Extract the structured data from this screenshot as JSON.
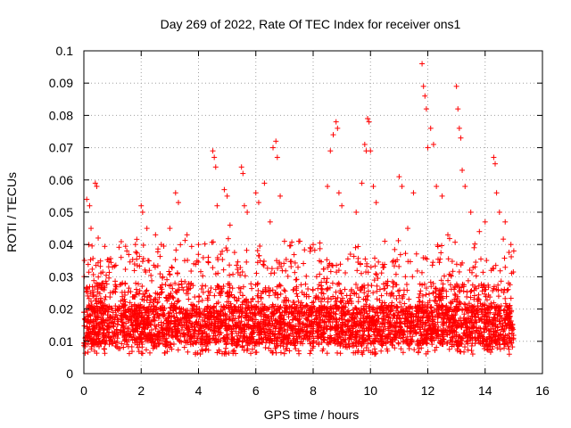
{
  "chart_data": {
    "type": "scatter",
    "title": "Day 269 of 2022, Rate Of TEC Index for receiver ons1",
    "xlabel": "GPS time / hours",
    "ylabel": "ROTI / TECUs",
    "xlim": [
      0,
      16
    ],
    "ylim": [
      0,
      0.1
    ],
    "xticks": [
      "0",
      "2",
      "4",
      "6",
      "8",
      "10",
      "12",
      "14",
      "16"
    ],
    "yticks": [
      "0",
      "0.01",
      "0.02",
      "0.03",
      "0.04",
      "0.05",
      "0.06",
      "0.07",
      "0.08",
      "0.09",
      "0.1"
    ],
    "grid": true,
    "marker": "+",
    "color": "#ff0000",
    "data_extent_hours": [
      0,
      15
    ],
    "series": [
      {
        "name": "ROTI ons1",
        "points": [
          [
            0.1,
            0.054
          ],
          [
            0.2,
            0.052
          ],
          [
            0.25,
            0.045
          ],
          [
            0.4,
            0.059
          ],
          [
            0.45,
            0.058
          ],
          [
            0.5,
            0.042
          ],
          [
            1.0,
            0.033
          ],
          [
            1.3,
            0.036
          ],
          [
            1.5,
            0.038
          ],
          [
            1.8,
            0.04
          ],
          [
            2.0,
            0.052
          ],
          [
            2.05,
            0.05
          ],
          [
            2.2,
            0.045
          ],
          [
            2.5,
            0.043
          ],
          [
            2.7,
            0.04
          ],
          [
            3.0,
            0.045
          ],
          [
            3.2,
            0.056
          ],
          [
            3.3,
            0.053
          ],
          [
            3.6,
            0.043
          ],
          [
            4.0,
            0.04
          ],
          [
            4.5,
            0.069
          ],
          [
            4.55,
            0.067
          ],
          [
            4.6,
            0.064
          ],
          [
            4.65,
            0.052
          ],
          [
            4.9,
            0.057
          ],
          [
            5.0,
            0.055
          ],
          [
            5.1,
            0.046
          ],
          [
            5.5,
            0.064
          ],
          [
            5.55,
            0.062
          ],
          [
            5.6,
            0.052
          ],
          [
            5.7,
            0.05
          ],
          [
            6.0,
            0.056
          ],
          [
            6.1,
            0.053
          ],
          [
            6.3,
            0.059
          ],
          [
            6.5,
            0.047
          ],
          [
            6.6,
            0.07
          ],
          [
            6.7,
            0.072
          ],
          [
            6.75,
            0.067
          ],
          [
            6.85,
            0.055
          ],
          [
            7.0,
            0.041
          ],
          [
            7.5,
            0.041
          ],
          [
            7.9,
            0.039
          ],
          [
            8.0,
            0.04
          ],
          [
            8.5,
            0.058
          ],
          [
            8.6,
            0.069
          ],
          [
            8.7,
            0.074
          ],
          [
            8.8,
            0.078
          ],
          [
            8.85,
            0.076
          ],
          [
            8.9,
            0.056
          ],
          [
            9.0,
            0.052
          ],
          [
            9.3,
            0.037
          ],
          [
            9.5,
            0.05
          ],
          [
            9.7,
            0.059
          ],
          [
            9.8,
            0.071
          ],
          [
            9.85,
            0.069
          ],
          [
            9.9,
            0.079
          ],
          [
            9.95,
            0.078
          ],
          [
            10.0,
            0.069
          ],
          [
            10.1,
            0.058
          ],
          [
            10.2,
            0.053
          ],
          [
            10.5,
            0.041
          ],
          [
            10.8,
            0.035
          ],
          [
            11.0,
            0.061
          ],
          [
            11.1,
            0.058
          ],
          [
            11.3,
            0.045
          ],
          [
            11.5,
            0.056
          ],
          [
            11.8,
            0.096
          ],
          [
            11.85,
            0.089
          ],
          [
            11.9,
            0.086
          ],
          [
            11.95,
            0.082
          ],
          [
            12.0,
            0.07
          ],
          [
            12.1,
            0.076
          ],
          [
            12.2,
            0.071
          ],
          [
            12.3,
            0.058
          ],
          [
            12.5,
            0.055
          ],
          [
            12.7,
            0.043
          ],
          [
            13.0,
            0.089
          ],
          [
            13.05,
            0.082
          ],
          [
            13.1,
            0.076
          ],
          [
            13.15,
            0.073
          ],
          [
            13.2,
            0.063
          ],
          [
            13.3,
            0.058
          ],
          [
            13.5,
            0.05
          ],
          [
            13.8,
            0.044
          ],
          [
            14.0,
            0.047
          ],
          [
            14.3,
            0.067
          ],
          [
            14.35,
            0.065
          ],
          [
            14.4,
            0.056
          ],
          [
            14.5,
            0.05
          ],
          [
            14.7,
            0.047
          ],
          [
            14.9,
            0.04
          ],
          [
            15.0,
            0.038
          ]
        ]
      }
    ]
  }
}
